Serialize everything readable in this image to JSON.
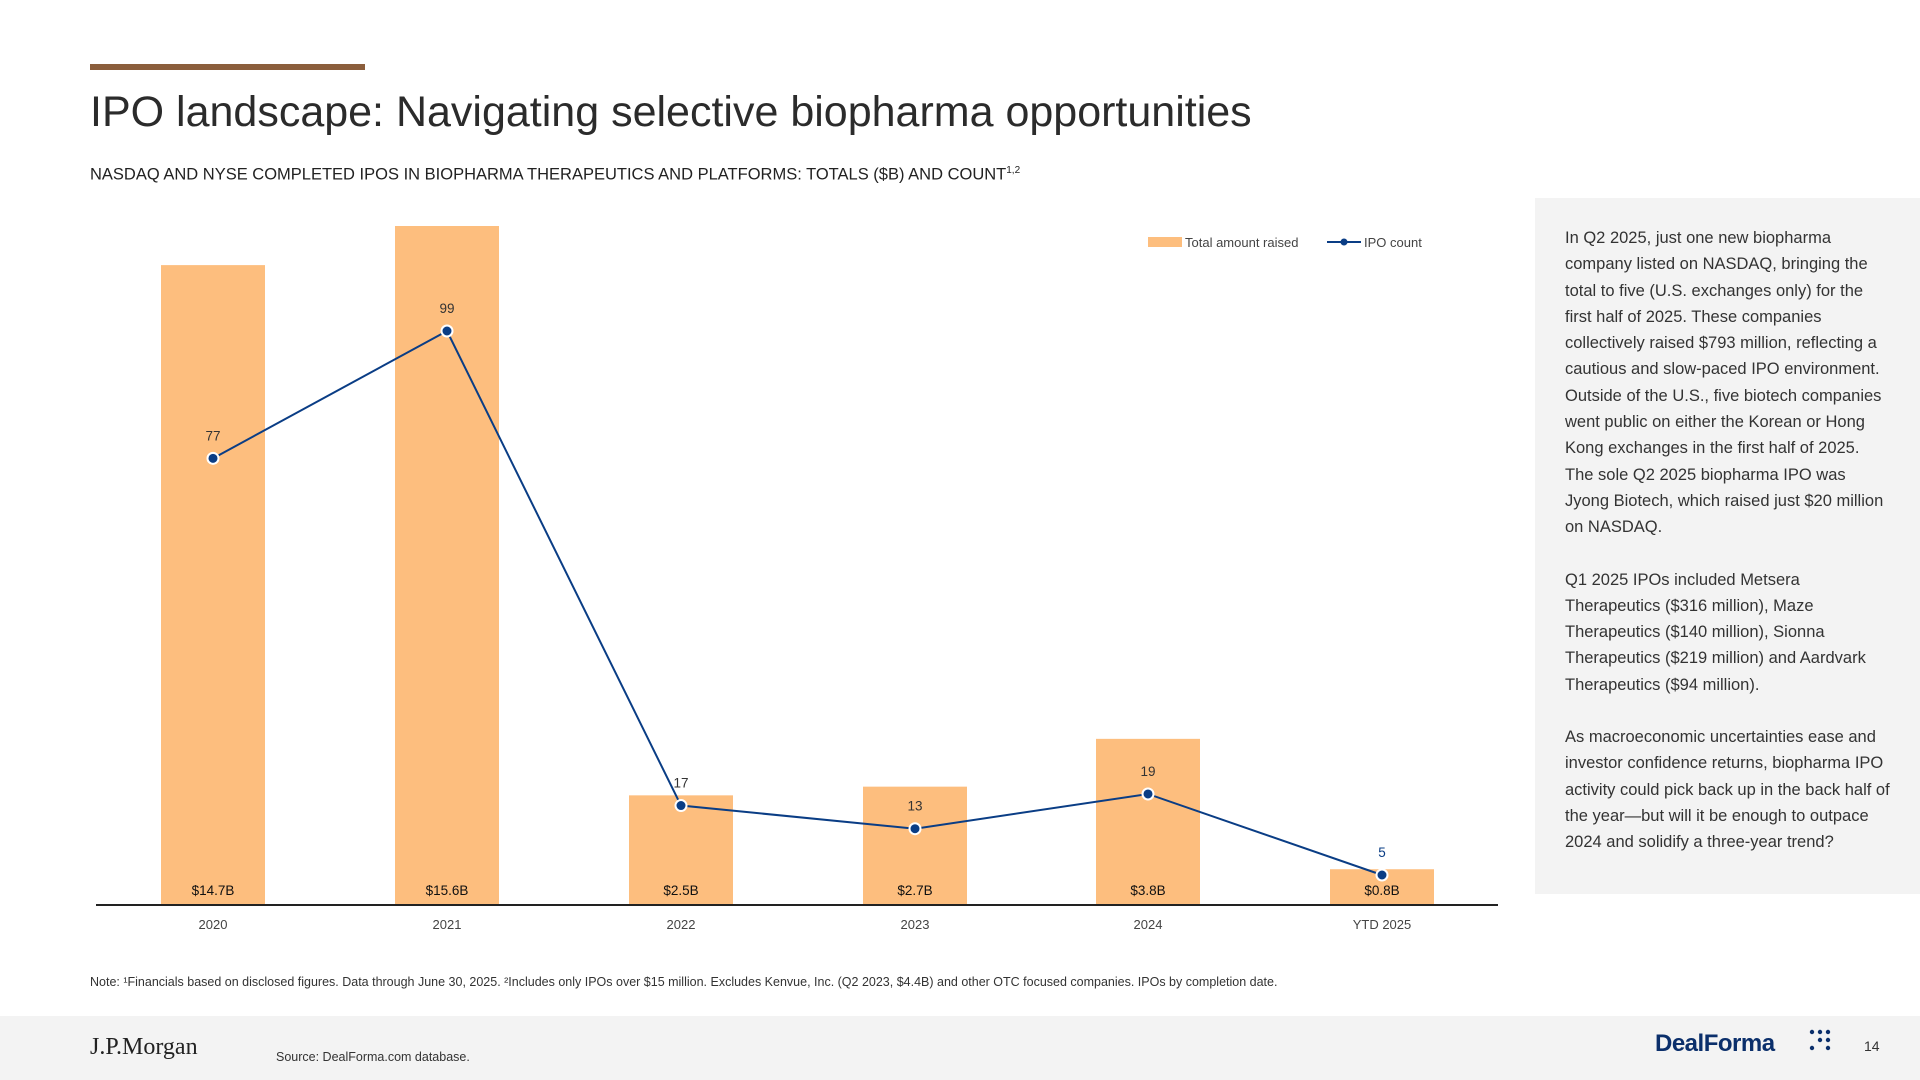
{
  "title": "IPO landscape: Navigating selective biopharma opportunities",
  "subtitle": "NASDAQ AND NYSE COMPLETED IPOS IN BIOPHARMA THERAPEUTICS AND PLATFORMS: TOTALS ($B) AND COUNT",
  "subtitle_sup": "1,2",
  "colors": {
    "accent": "#8B5E3C",
    "bar": "#FDBE7E",
    "line": "#0A3D85",
    "panel_bg": "#f3f3f3"
  },
  "chart_data": {
    "type": "bar",
    "categories": [
      "2020",
      "2021",
      "2022",
      "2023",
      "2024",
      "YTD 2025"
    ],
    "series": [
      {
        "name": "Total amount raised",
        "type": "bar",
        "values": [
          14.7,
          15.6,
          2.5,
          2.7,
          3.8,
          0.8
        ],
        "labels": [
          "$14.7B",
          "$15.6B",
          "$2.5B",
          "$2.7B",
          "$3.8B",
          "$0.8B"
        ]
      },
      {
        "name": "IPO count",
        "type": "line",
        "values": [
          77,
          99,
          17,
          13,
          19,
          5
        ],
        "labels": [
          "77",
          "99",
          "17",
          "13",
          "19",
          "5"
        ]
      }
    ],
    "legend": [
      "Total amount raised",
      "IPO count"
    ],
    "legend_position": "top-right",
    "bar_ylim": [
      0,
      15.6
    ],
    "line_ylim": [
      0,
      118
    ],
    "grid": false
  },
  "side_panel": {
    "paragraphs": [
      "In Q2 2025, just one new biopharma company listed on NASDAQ, bringing the total to five (U.S. exchanges only) for the first half of 2025. These companies collectively raised $793 million, reflecting a cautious and slow-paced IPO environment. Outside of the U.S., five biotech companies went public on either the Korean or Hong Kong exchanges in the first half of 2025. The sole Q2 2025 biopharma IPO was Jyong Biotech, which raised just $20 million on NASDAQ.",
      "Q1 2025 IPOs included Metsera Therapeutics ($316 million), Maze Therapeutics ($140 million), Sionna Therapeutics ($219 million) and Aardvark Therapeutics ($94 million).",
      "As macroeconomic uncertainties ease and investor confidence returns, biopharma IPO activity could pick back up in the back half of the year—but will it be enough to outpace 2024 and solidify a three-year trend?"
    ]
  },
  "note": "Note: ¹Financials based on disclosed figures. Data through June 30, 2025. ²Includes only IPOs over $15 million. Excludes Kenvue, Inc. (Q2 2023, $4.4B) and other OTC focused companies. IPOs by completion date.",
  "footer": {
    "logo_text": "J.P.Morgan",
    "source": "Source: DealForma.com database.",
    "brand": "DealForma",
    "page_number": "14"
  }
}
